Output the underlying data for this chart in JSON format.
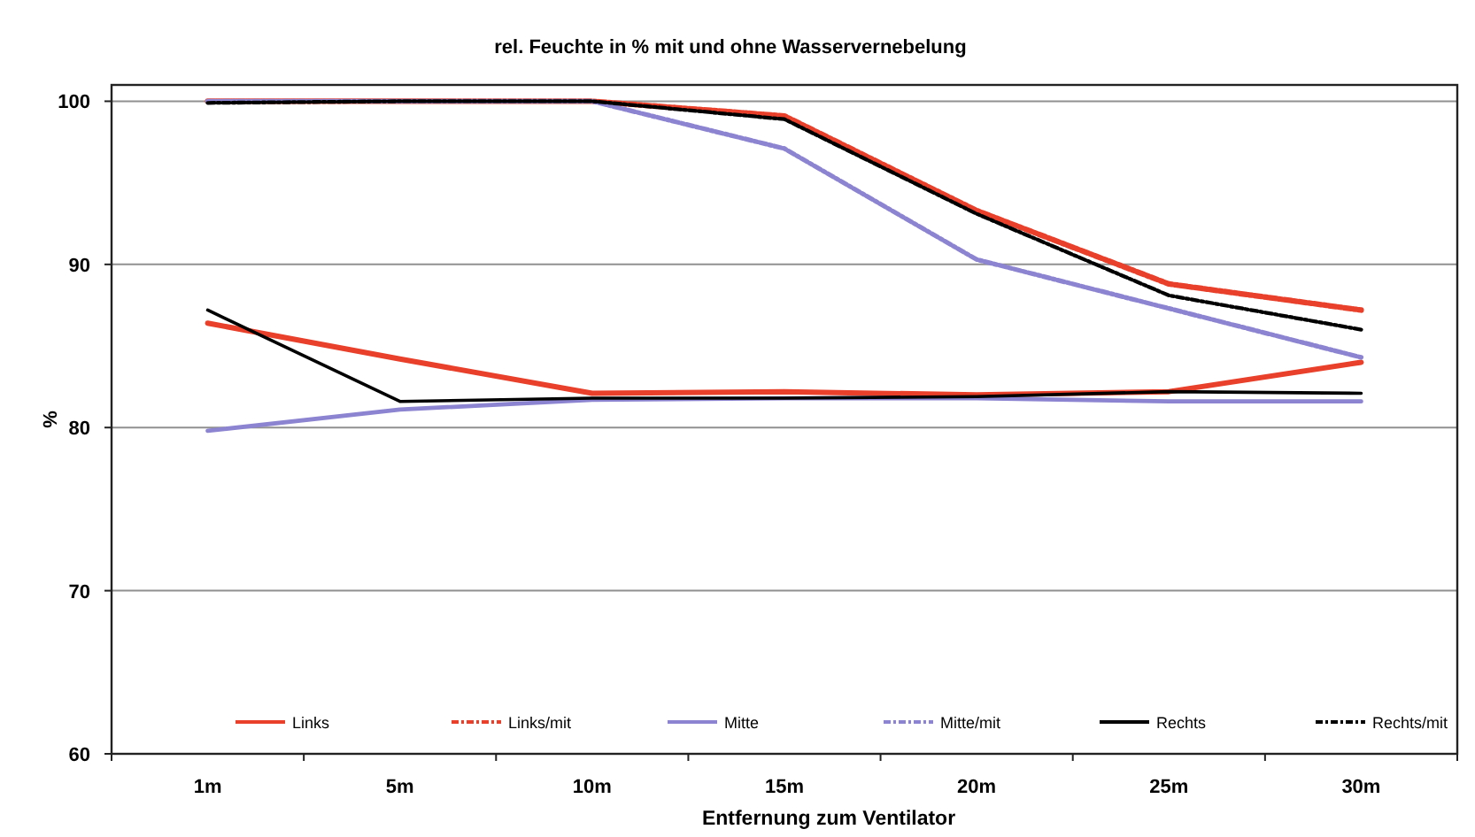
{
  "chart_data": {
    "type": "line",
    "title": "rel. Feuchte in % mit und ohne Wasservernebelung",
    "xlabel": "Entfernung zum Ventilator",
    "ylabel": "%",
    "categories": [
      "1m",
      "5m",
      "10m",
      "15m",
      "20m",
      "25m",
      "30m"
    ],
    "ylim": [
      60,
      101
    ],
    "yticks": [
      60,
      70,
      80,
      90,
      100
    ],
    "grid": "y",
    "legend": "bottom",
    "marker": "none",
    "series": [
      {
        "name": "Links",
        "color": "#e8402a",
        "line_style": "solid",
        "values": [
          86.4,
          84.2,
          82.1,
          82.2,
          82,
          82.2,
          84
        ]
      },
      {
        "name": "Links/mit",
        "color": "#e8402a",
        "line_style": "dashed",
        "values": [
          100,
          100,
          100,
          99.1,
          93.3,
          88.8,
          87.2
        ]
      },
      {
        "name": "Mitte",
        "color": "#8c84d0",
        "line_style": "solid",
        "values": [
          79.8,
          81.1,
          81.7,
          81.8,
          81.8,
          81.6,
          81.6
        ]
      },
      {
        "name": "Mitte/mit",
        "color": "#8c84d0",
        "line_style": "dashed",
        "values": [
          100,
          100,
          100,
          97.1,
          90.3,
          87.3,
          84.3
        ]
      },
      {
        "name": "Rechts",
        "color": "#000000",
        "line_style": "solid",
        "values": [
          87.2,
          81.6,
          81.8,
          81.8,
          81.9,
          82.2,
          82.1
        ]
      },
      {
        "name": "Rechts/mit",
        "color": "#000000",
        "line_style": "dashed",
        "values": [
          99.9,
          100,
          100,
          98.9,
          93.1,
          88.1,
          86
        ]
      }
    ]
  }
}
